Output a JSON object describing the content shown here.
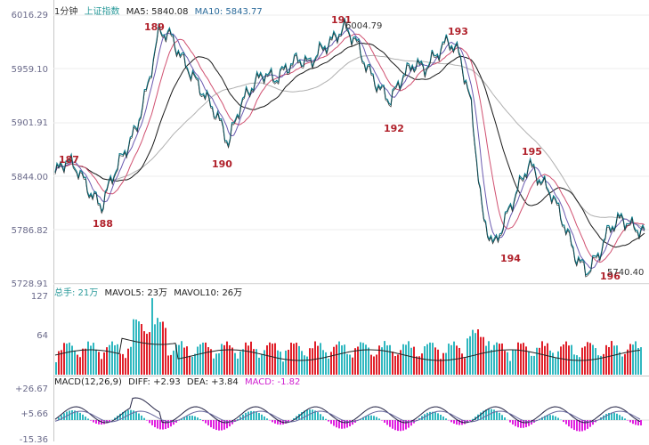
{
  "price_panel": {
    "legend": {
      "period": "1分钟",
      "index_name": "上证指数",
      "ma5": "MA5: 5840.08",
      "ma10": "MA10: 5843.77"
    },
    "y_ticks": [
      "6016.29",
      "5959.10",
      "5901.91",
      "5844.00",
      "5786.82",
      "5728.91"
    ],
    "wave_labels": [
      "187",
      "188",
      "189",
      "190",
      "191",
      "192",
      "193",
      "194",
      "195",
      "196"
    ],
    "annotations": {
      "high": "6004.79",
      "low": "5740.40"
    },
    "colors": {
      "price": "#0a7a8a",
      "ma5": "#222222",
      "ma10": "#d05070",
      "ma_long": "#b0b0b0",
      "labels": "#b0202a"
    }
  },
  "volume_panel": {
    "legend": {
      "total": "总手: 21万",
      "mavol5": "MAVOL5: 23万",
      "mavol10": "MAVOL10: 26万"
    },
    "y_ticks": [
      "127",
      "64"
    ],
    "colors": {
      "up": "#e0202a",
      "down": "#30b8c0"
    }
  },
  "macd_panel": {
    "legend": {
      "title": "MACD(12,26,9)",
      "diff": "DIFF: +2.93",
      "dea": "DEA: +3.84",
      "macd": "MACD: -1.82"
    },
    "y_ticks": [
      "+26.67",
      "+5.66",
      "-15.36"
    ],
    "colors": {
      "pos": "#30b8c0",
      "neg": "#e020e0",
      "diff": "#222244",
      "dea": "#6a6aa0"
    }
  },
  "chart_data": {
    "type": "line",
    "title": "",
    "series": [
      {
        "name": "上证指数",
        "values": [
          5848,
          5862,
          5851,
          5828,
          5812,
          5846,
          5870,
          5895,
          5940,
          6000,
          5995,
          5970,
          5950,
          5930,
          5910,
          5880,
          5920,
          5940,
          5955,
          5948,
          5960,
          5970,
          5965,
          5980,
          5990,
          6004,
          5990,
          5960,
          5940,
          5925,
          5950,
          5965,
          5960,
          5975,
          5990,
          5975,
          5920,
          5800,
          5770,
          5800,
          5830,
          5858,
          5840,
          5825,
          5795,
          5760,
          5742,
          5760,
          5790,
          5800,
          5790,
          5785
        ]
      }
    ],
    "ylim": [
      5728.91,
      6016.29
    ]
  }
}
